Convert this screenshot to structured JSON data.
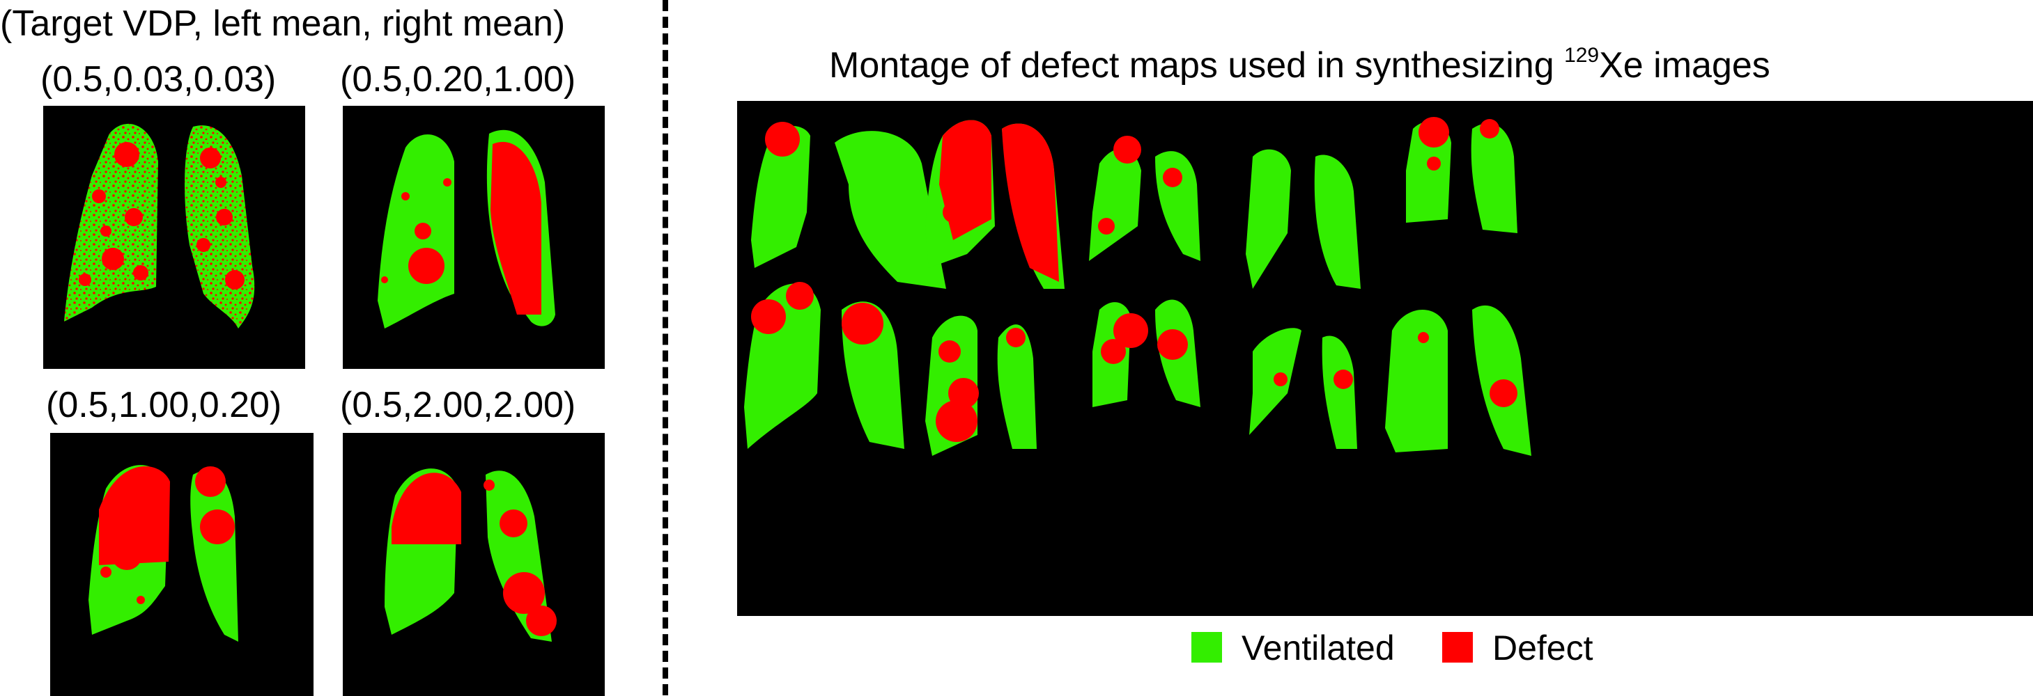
{
  "header": "(Target VDP, left mean, right mean)",
  "panels": [
    {
      "label": "(0.5,0.03,0.03)"
    },
    {
      "label": "(0.5,0.20,1.00)"
    },
    {
      "label": "(0.5,1.00,0.20)"
    },
    {
      "label": "(0.5,2.00,2.00)"
    }
  ],
  "montage": {
    "title_pre": "Montage of defect maps used in synthesizing ",
    "title_sup": "129",
    "title_post": "Xe images"
  },
  "legend": [
    {
      "label": "Ventilated",
      "color": "#33ee00"
    },
    {
      "label": "Defect",
      "color": "#ff0000"
    }
  ],
  "colors": {
    "ventilated": "#33ee00",
    "defect": "#ff0000",
    "background": "#000000"
  }
}
